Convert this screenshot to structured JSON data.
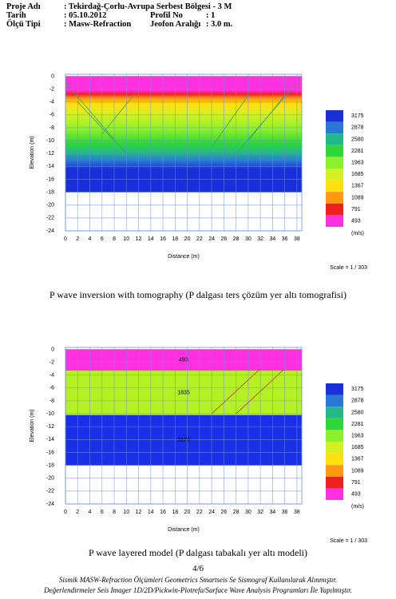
{
  "header": {
    "rows": [
      [
        "Proje Adı",
        ": Tekirdağ-Çorlu-Avrupa Serbest Bölgesi - 3 M"
      ],
      [
        "Tarih",
        ": 05.10.2012",
        "Profil No",
        ": 1"
      ],
      [
        "Ölçü Tipi",
        ": Masw-Refraction",
        "Jeofon Aralığı",
        ": 3.0 m."
      ]
    ]
  },
  "chart_data": [
    {
      "type": "tomography",
      "xlabel": "Distance (m)",
      "ylabel": "Elevation (m)",
      "xlim": [
        0,
        38.8
      ],
      "ylim": [
        -24,
        0.3
      ],
      "xticks": [
        0,
        2,
        4,
        6,
        8,
        10,
        12,
        14,
        16,
        18,
        20,
        22,
        24,
        26,
        28,
        30,
        32,
        34,
        36,
        38
      ],
      "yticks": [
        0,
        -2,
        -4,
        -6,
        -8,
        -10,
        -12,
        -14,
        -16,
        -18,
        -20,
        -22,
        -24
      ],
      "legend": {
        "values": [
          3175,
          2878,
          2580,
          2281,
          1963,
          1685,
          1367,
          1089,
          791,
          493
        ],
        "colors": [
          "#1a2fd8",
          "#2a78d6",
          "#22b88a",
          "#2ed63a",
          "#8cf02c",
          "#d4f022",
          "#ffe010",
          "#ff9a10",
          "#ee2020",
          "#ff30e0"
        ],
        "unit": "(m/s)"
      },
      "scale": "Scale = 1 / 303",
      "caption": "P wave inversion with tomography (P dalgası ters çözüm yer altı tomografisi)"
    },
    {
      "type": "layered",
      "xlabel": "Distance (m)",
      "ylabel": "Elevation (m)",
      "xlim": [
        0,
        38.8
      ],
      "ylim": [
        -24,
        0.3
      ],
      "xticks": [
        0,
        2,
        4,
        6,
        8,
        10,
        12,
        14,
        16,
        18,
        20,
        22,
        24,
        26,
        28,
        30,
        32,
        34,
        36,
        38
      ],
      "yticks": [
        0,
        -2,
        -4,
        -6,
        -8,
        -10,
        -12,
        -14,
        -16,
        -18,
        -20,
        -22,
        -24
      ],
      "layers": [
        {
          "velocity": 493,
          "top": 0,
          "bottom": -3.3,
          "color": "#ff30e0"
        },
        {
          "velocity": 1835,
          "top": -3.3,
          "bottom": -10.2,
          "color": "#b4f024"
        },
        {
          "velocity": 3176,
          "top": -10.2,
          "bottom": -18,
          "color": "#1a2fe8"
        }
      ],
      "legend": {
        "values": [
          3175,
          2878,
          2580,
          2281,
          1963,
          1685,
          1367,
          1089,
          791,
          493
        ],
        "colors": [
          "#1a2fd8",
          "#2a78d6",
          "#22b88a",
          "#2ed63a",
          "#8cf02c",
          "#d4f022",
          "#ffe010",
          "#ff9a10",
          "#ee2020",
          "#ff30e0"
        ],
        "unit": "(m/s)"
      },
      "scale": "Scale = 1 / 303",
      "caption": "P wave layered model (P dalgası tabakalı yer altı modeli)"
    }
  ],
  "footer": {
    "page": "4/6",
    "lines": [
      "Sismik MASW-Refraction Ölçümleri Geometrics Smartseis Se Sismograf Kullanılarak Alınmıştır.",
      "Değerlendirmeler Seis Imager 1D/2D/Pickwin-Plotrefa/Surface Wave Analysis Programları İle Yapılmıştır."
    ]
  }
}
